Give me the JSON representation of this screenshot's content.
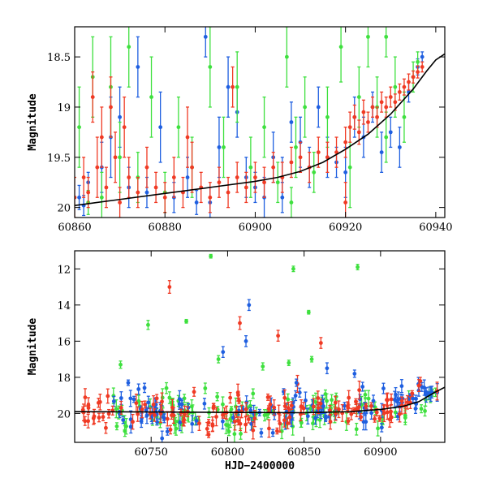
{
  "colors": {
    "blue": "#1f5fe0",
    "green": "#3ee03e",
    "red": "#f03a24",
    "model": "#000000"
  },
  "chart_data": [
    {
      "type": "scatter",
      "title": "",
      "xlabel": "",
      "ylabel": "Magnitude",
      "xlim": [
        60860,
        60942
      ],
      "ylim": [
        20.1,
        18.2
      ],
      "inverted_y": true,
      "x_ticks": [
        60860,
        60880,
        60900,
        60920,
        60940
      ],
      "x_tick_labels": [
        "60860",
        "60880",
        "60900",
        "60920",
        "60940"
      ],
      "y_ticks": [
        18.5,
        19,
        19.5,
        20
      ],
      "y_tick_labels": [
        "18.5",
        "19",
        "19.5",
        "20"
      ],
      "model_curve": {
        "x": [
          60860,
          60870,
          60880,
          60890,
          60900,
          60905,
          60910,
          60915,
          60920,
          60925,
          60930,
          60935,
          60938,
          60940,
          60942
        ],
        "y": [
          19.98,
          19.92,
          19.86,
          19.8,
          19.74,
          19.7,
          19.64,
          19.55,
          19.42,
          19.27,
          19.07,
          18.82,
          18.64,
          18.53,
          18.47
        ]
      },
      "series": [
        {
          "color": "blue",
          "points": [
            [
              60861,
              19.9,
              0.12
            ],
            [
              60863,
              19.75,
              0.1
            ],
            [
              60866,
              19.6,
              0.25
            ],
            [
              60868,
              19.3,
              0.4
            ],
            [
              60870,
              19.1,
              0.3
            ],
            [
              60872,
              19.8,
              0.2
            ],
            [
              60874,
              18.6,
              0.3
            ],
            [
              60876,
              19.85,
              0.15
            ],
            [
              60879,
              19.2,
              0.35
            ],
            [
              60882,
              19.9,
              0.15
            ],
            [
              60885,
              19.7,
              0.2
            ],
            [
              60889,
              18.3,
              0.2
            ],
            [
              60890,
              19.95,
              0.15
            ],
            [
              60892,
              19.4,
              0.3
            ],
            [
              60894,
              18.8,
              0.3
            ],
            [
              60896,
              19.05,
              0.25
            ],
            [
              60898,
              19.7,
              0.2
            ],
            [
              60900,
              19.8,
              0.15
            ],
            [
              60902,
              19.9,
              0.2
            ],
            [
              60904,
              19.5,
              0.25
            ],
            [
              60906,
              19.7,
              0.2
            ],
            [
              60908,
              19.15,
              0.2
            ],
            [
              60910,
              19.35,
              0.25
            ],
            [
              60912,
              19.6,
              0.2
            ],
            [
              60914,
              19.0,
              0.2
            ],
            [
              60916,
              19.5,
              0.2
            ],
            [
              60918,
              19.55,
              0.15
            ],
            [
              60920,
              19.65,
              0.25
            ],
            [
              60922,
              19.1,
              0.2
            ],
            [
              60924,
              19.3,
              0.2
            ],
            [
              60926,
              19.0,
              0.15
            ],
            [
              60928,
              19.45,
              0.2
            ],
            [
              60930,
              19.25,
              0.15
            ],
            [
              60932,
              19.4,
              0.2
            ],
            [
              60934,
              18.85,
              0.1
            ],
            [
              60936,
              18.6,
              0.08
            ],
            [
              60937,
              18.5,
              0.05
            ],
            [
              60862,
              19.98,
              0.1
            ],
            [
              60887,
              19.95,
              0.12
            ],
            [
              60906,
              19.9,
              0.15
            ]
          ]
        },
        {
          "color": "green",
          "points": [
            [
              60861,
              19.2,
              0.4
            ],
            [
              60864,
              18.7,
              0.4
            ],
            [
              60866,
              19.9,
              0.25
            ],
            [
              60868,
              18.8,
              0.5
            ],
            [
              60870,
              19.5,
              0.35
            ],
            [
              60872,
              18.4,
              0.4
            ],
            [
              60874,
              19.7,
              0.25
            ],
            [
              60877,
              18.9,
              0.4
            ],
            [
              60880,
              19.85,
              0.2
            ],
            [
              60883,
              19.2,
              0.3
            ],
            [
              60886,
              19.6,
              0.3
            ],
            [
              60890,
              18.6,
              0.4
            ],
            [
              60893,
              19.4,
              0.3
            ],
            [
              60896,
              18.8,
              0.35
            ],
            [
              60899,
              19.6,
              0.3
            ],
            [
              60902,
              19.2,
              0.3
            ],
            [
              60905,
              19.75,
              0.2
            ],
            [
              60907,
              18.5,
              0.3
            ],
            [
              60909,
              19.4,
              0.3
            ],
            [
              60911,
              19.0,
              0.3
            ],
            [
              60913,
              19.65,
              0.2
            ],
            [
              60916,
              19.1,
              0.3
            ],
            [
              60919,
              18.4,
              0.35
            ],
            [
              60921,
              19.6,
              0.4
            ],
            [
              60923,
              18.9,
              0.3
            ],
            [
              60925,
              18.3,
              0.3
            ],
            [
              60927,
              19.0,
              0.3
            ],
            [
              60929,
              19.3,
              0.25
            ],
            [
              60931,
              18.8,
              0.3
            ],
            [
              60933,
              19.1,
              0.25
            ],
            [
              60935,
              18.7,
              0.15
            ],
            [
              60936,
              18.55,
              0.1
            ],
            [
              60929,
              18.3,
              0.2
            ],
            [
              60863,
              19.95,
              0.12
            ],
            [
              60908,
              19.95,
              0.15
            ]
          ]
        },
        {
          "color": "red",
          "points": [
            [
              60860,
              19.9,
              0.2
            ],
            [
              60862,
              19.7,
              0.2
            ],
            [
              60863,
              19.85,
              0.15
            ],
            [
              60865,
              19.6,
              0.3
            ],
            [
              60866,
              19.3,
              0.3
            ],
            [
              60867,
              19.8,
              0.2
            ],
            [
              60869,
              19.5,
              0.25
            ],
            [
              60870,
              19.95,
              0.15
            ],
            [
              60872,
              19.7,
              0.2
            ],
            [
              60874,
              19.85,
              0.15
            ],
            [
              60876,
              19.6,
              0.2
            ],
            [
              60878,
              19.8,
              0.15
            ],
            [
              60880,
              19.9,
              0.15
            ],
            [
              60882,
              19.7,
              0.2
            ],
            [
              60884,
              19.85,
              0.15
            ],
            [
              60886,
              19.6,
              0.25
            ],
            [
              60888,
              19.8,
              0.15
            ],
            [
              60890,
              19.9,
              0.15
            ],
            [
              60892,
              19.75,
              0.15
            ],
            [
              60894,
              19.85,
              0.15
            ],
            [
              60896,
              19.7,
              0.15
            ],
            [
              60898,
              19.8,
              0.15
            ],
            [
              60900,
              19.7,
              0.15
            ],
            [
              60902,
              19.75,
              0.15
            ],
            [
              60904,
              19.6,
              0.15
            ],
            [
              60906,
              19.7,
              0.15
            ],
            [
              60908,
              19.55,
              0.15
            ],
            [
              60910,
              19.5,
              0.15
            ],
            [
              60912,
              19.6,
              0.15
            ],
            [
              60914,
              19.45,
              0.15
            ],
            [
              60916,
              19.5,
              0.15
            ],
            [
              60918,
              19.45,
              0.15
            ],
            [
              60920,
              19.35,
              0.15
            ],
            [
              60921,
              19.2,
              0.15
            ],
            [
              60922,
              19.1,
              0.12
            ],
            [
              60923,
              19.25,
              0.12
            ],
            [
              60924,
              19.05,
              0.12
            ],
            [
              60925,
              19.15,
              0.1
            ],
            [
              60926,
              19.0,
              0.1
            ],
            [
              60927,
              19.1,
              0.1
            ],
            [
              60928,
              18.95,
              0.1
            ],
            [
              60929,
              19.0,
              0.1
            ],
            [
              60930,
              18.9,
              0.1
            ],
            [
              60931,
              18.95,
              0.08
            ],
            [
              60932,
              18.85,
              0.08
            ],
            [
              60933,
              18.8,
              0.08
            ],
            [
              60934,
              18.75,
              0.08
            ],
            [
              60935,
              18.7,
              0.06
            ],
            [
              60936,
              18.65,
              0.06
            ],
            [
              60937,
              18.6,
              0.05
            ],
            [
              60868,
              19.0,
              0.3
            ],
            [
              60871,
              19.2,
              0.3
            ],
            [
              60885,
              19.3,
              0.3
            ],
            [
              60895,
              18.8,
              0.2
            ],
            [
              60920,
              19.95,
              0.2
            ],
            [
              60864,
              18.9,
              0.25
            ]
          ]
        }
      ]
    },
    {
      "type": "scatter",
      "title": "",
      "xlabel": "HJD−2400000",
      "ylabel": "Magnitude",
      "xlim": [
        60700,
        60942
      ],
      "ylim": [
        21.6,
        11.0
      ],
      "inverted_y": true,
      "x_ticks": [
        60750,
        60800,
        60850,
        60900
      ],
      "x_tick_labels": [
        "60750",
        "60800",
        "60850",
        "60900"
      ],
      "y_ticks": [
        12,
        14,
        16,
        18,
        20
      ],
      "y_tick_labels": [
        "12",
        "14",
        "16",
        "18",
        "20"
      ],
      "model_curve": {
        "x": [
          60700,
          60750,
          60800,
          60850,
          60880,
          60900,
          60915,
          60925,
          60935,
          60942
        ],
        "y": [
          19.9,
          19.92,
          19.94,
          19.96,
          19.9,
          19.78,
          19.6,
          19.35,
          18.85,
          18.55
        ]
      },
      "outliers": [
        {
          "color": "red",
          "x": 60762,
          "y": 13.0,
          "err": 0.35
        },
        {
          "color": "red",
          "x": 60808,
          "y": 15.0,
          "err": 0.35
        },
        {
          "color": "red",
          "x": 60833,
          "y": 15.7,
          "err": 0.3
        },
        {
          "color": "red",
          "x": 60861,
          "y": 16.1,
          "err": 0.3
        },
        {
          "color": "blue",
          "x": 60814,
          "y": 14.0,
          "err": 0.3
        },
        {
          "color": "blue",
          "x": 60812,
          "y": 16.0,
          "err": 0.3
        },
        {
          "color": "blue",
          "x": 60797,
          "y": 16.6,
          "err": 0.3
        },
        {
          "color": "blue",
          "x": 60865,
          "y": 17.5,
          "err": 0.3
        },
        {
          "color": "blue",
          "x": 60845,
          "y": 18.3,
          "err": 0.2
        },
        {
          "color": "blue",
          "x": 60735,
          "y": 18.3,
          "err": 0.15
        },
        {
          "color": "blue",
          "x": 60883,
          "y": 17.8,
          "err": 0.2
        },
        {
          "color": "green",
          "x": 60789,
          "y": 11.3,
          "err": 0.1
        },
        {
          "color": "green",
          "x": 60843,
          "y": 12.0,
          "err": 0.15
        },
        {
          "color": "green",
          "x": 60885,
          "y": 11.9,
          "err": 0.15
        },
        {
          "color": "green",
          "x": 60748,
          "y": 15.1,
          "err": 0.25
        },
        {
          "color": "green",
          "x": 60773,
          "y": 14.9,
          "err": 0.1
        },
        {
          "color": "green",
          "x": 60853,
          "y": 14.4,
          "err": 0.1
        },
        {
          "color": "green",
          "x": 60730,
          "y": 17.3,
          "err": 0.2
        },
        {
          "color": "green",
          "x": 60794,
          "y": 17.0,
          "err": 0.2
        },
        {
          "color": "green",
          "x": 60823,
          "y": 17.4,
          "err": 0.2
        },
        {
          "color": "green",
          "x": 60840,
          "y": 17.2,
          "err": 0.15
        },
        {
          "color": "green",
          "x": 60855,
          "y": 17.0,
          "err": 0.15
        },
        {
          "color": "green",
          "x": 60760,
          "y": 18.6,
          "err": 0.3
        }
      ],
      "bulk": {
        "x_start": 60705,
        "x_end": 60938,
        "points_per_series": 130,
        "scatter_mag": 0.55,
        "description_of_baseline": "follows model_curve"
      }
    }
  ]
}
